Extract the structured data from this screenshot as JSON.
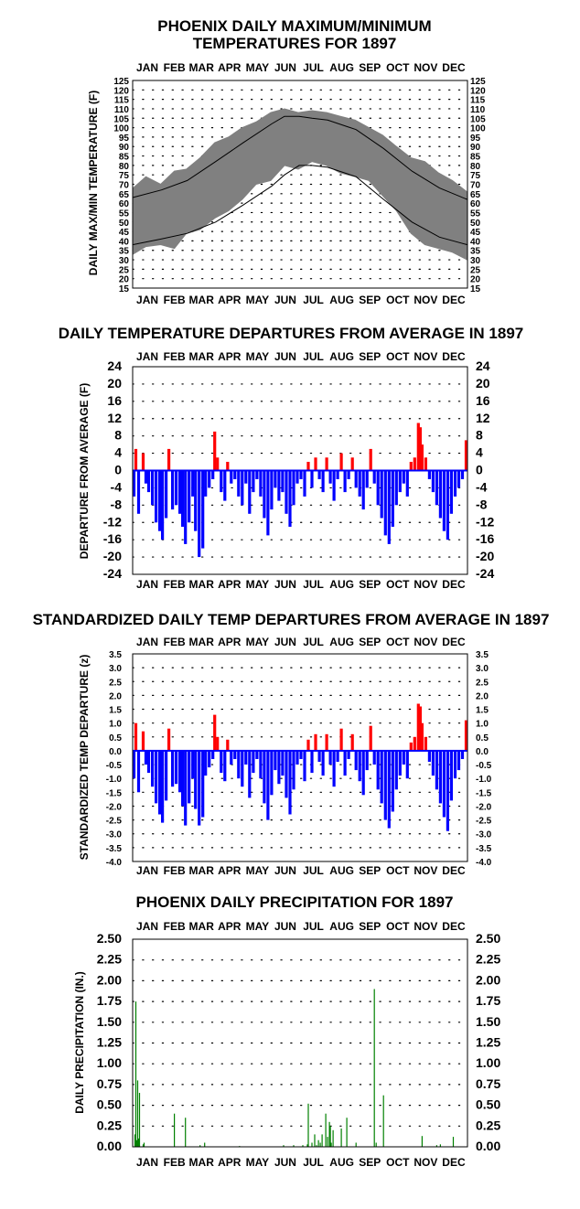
{
  "colors": {
    "background": "#ffffff",
    "frame": "#000000",
    "grid_dots": "#000000",
    "max_min_band": "#808080",
    "normal_lines": "#000000",
    "positive_departure": "#ff0000",
    "negative_departure": "#0000ff",
    "precipitation": "#008000"
  },
  "chart_data": [
    {
      "type": "area",
      "title": "PHOENIX DAILY MAXIMUM/MINIMUM",
      "title_line2": "TEMPERATURES FOR 1897",
      "ylabel": "DAILY MAX/MIN TEMPERATURE (F)",
      "xlabel": "",
      "months": [
        "JAN",
        "FEB",
        "MAR",
        "APR",
        "MAY",
        "JUN",
        "JUL",
        "AUG",
        "SEP",
        "OCT",
        "NOV",
        "DEC"
      ],
      "ylim": [
        15,
        125
      ],
      "yticks": [
        "15",
        "20",
        "25",
        "30",
        "35",
        "40",
        "45",
        "50",
        "55",
        "60",
        "65",
        "70",
        "75",
        "80",
        "85",
        "90",
        "95",
        "100",
        "105",
        "110",
        "115",
        "120",
        "125"
      ],
      "grid": true,
      "series": [
        {
          "kind": "band",
          "x": [
            1,
            15,
            31,
            46,
            59,
            74,
            90,
            105,
            120,
            135,
            151,
            166,
            181,
            196,
            212,
            227,
            243,
            258,
            273,
            288,
            304,
            319,
            334,
            349,
            365
          ],
          "high": [
            68,
            74,
            70,
            77,
            78,
            84,
            92,
            95,
            100,
            103,
            108,
            110,
            108,
            109,
            108,
            106,
            104,
            100,
            96,
            90,
            84,
            82,
            76,
            72,
            66
          ],
          "low": [
            33,
            37,
            38,
            36,
            44,
            46,
            52,
            56,
            62,
            70,
            72,
            80,
            78,
            82,
            80,
            76,
            74,
            72,
            64,
            56,
            44,
            38,
            36,
            34,
            30
          ]
        },
        {
          "kind": "line",
          "x": [
            1,
            32,
            60,
            91,
            121,
            152,
            166,
            182,
            196,
            213,
            244,
            274,
            305,
            335,
            365
          ],
          "y": [
            63,
            67,
            72,
            82,
            92,
            102,
            106,
            106,
            105,
            104,
            99,
            89,
            77,
            68,
            62
          ]
        },
        {
          "kind": "line",
          "x": [
            1,
            32,
            60,
            91,
            121,
            152,
            166,
            182,
            196,
            213,
            244,
            274,
            305,
            335,
            365
          ],
          "y": [
            38,
            41,
            44,
            50,
            59,
            69,
            75,
            80,
            80,
            79,
            74,
            62,
            50,
            42,
            38
          ]
        }
      ]
    },
    {
      "type": "bar",
      "title": "DAILY TEMPERATURE DEPARTURES FROM AVERAGE IN 1897",
      "ylabel": "DEPARTURE FROM AVERAGE (F)",
      "xlabel": "",
      "months": [
        "JAN",
        "FEB",
        "MAR",
        "APR",
        "MAY",
        "JUN",
        "JUL",
        "AUG",
        "SEP",
        "OCT",
        "NOV",
        "DEC"
      ],
      "ylim": [
        -24,
        24
      ],
      "yticks": [
        "24",
        "20",
        "16",
        "12",
        "8",
        "4",
        "0",
        "-4",
        "-8",
        "-12",
        "-16",
        "-20",
        "-24"
      ],
      "grid": true,
      "x": [
        2,
        4,
        7,
        12,
        15,
        18,
        22,
        26,
        30,
        33,
        37,
        40,
        44,
        48,
        52,
        55,
        58,
        62,
        66,
        69,
        73,
        77,
        80,
        84,
        88,
        90,
        93,
        97,
        101,
        104,
        108,
        112,
        116,
        120,
        124,
        128,
        132,
        136,
        140,
        144,
        148,
        152,
        156,
        160,
        164,
        168,
        172,
        176,
        180,
        184,
        188,
        192,
        196,
        200,
        204,
        208,
        212,
        216,
        220,
        224,
        228,
        232,
        236,
        240,
        244,
        248,
        252,
        256,
        260,
        264,
        268,
        272,
        276,
        280,
        284,
        288,
        292,
        296,
        300,
        304,
        308,
        312,
        314,
        316,
        320,
        324,
        328,
        332,
        336,
        340,
        344,
        348,
        352,
        356,
        360,
        364
      ],
      "values": [
        -6,
        5,
        -10,
        4,
        -3,
        -5,
        -8,
        -12,
        -14,
        -16,
        -11,
        5,
        -9,
        -8,
        -10,
        -13,
        -17,
        -12,
        -6,
        -14,
        -20,
        -18,
        -6,
        -4,
        -2,
        9,
        3,
        -5,
        -7,
        2,
        -3,
        -2,
        -6,
        -8,
        -3,
        -10,
        -5,
        -2,
        -6,
        -11,
        -15,
        -9,
        -4,
        -7,
        -5,
        -10,
        -13,
        -8,
        -3,
        -2,
        -6,
        2,
        -4,
        3,
        -2,
        -5,
        3,
        -3,
        -7,
        -2,
        4,
        -5,
        -2,
        3,
        -4,
        -6,
        -9,
        -4,
        5,
        -3,
        -8,
        -11,
        -15,
        -17,
        -13,
        -8,
        -5,
        -3,
        -6,
        2,
        3,
        11,
        10,
        6,
        3,
        -2,
        -5,
        -8,
        -11,
        -14,
        -16,
        -10,
        -6,
        -4,
        -2,
        7
      ]
    },
    {
      "type": "bar",
      "title": "STANDARDIZED DAILY TEMP DEPARTURES FROM AVERAGE IN 1897",
      "ylabel": "STANDARDIZED TEMP DEPARTURE (z)",
      "xlabel": "",
      "months": [
        "JAN",
        "FEB",
        "MAR",
        "APR",
        "MAY",
        "JUN",
        "JUL",
        "AUG",
        "SEP",
        "OCT",
        "NOV",
        "DEC"
      ],
      "ylim": [
        -4.0,
        3.5
      ],
      "yticks": [
        "3.5",
        "3.0",
        "2.5",
        "2.0",
        "1.5",
        "1.0",
        "0.5",
        "0.0",
        "-0.5",
        "-1.0",
        "-1.5",
        "-2.0",
        "-2.5",
        "-3.0",
        "-3.5",
        "-4.0"
      ],
      "grid": true,
      "x": [
        2,
        4,
        7,
        12,
        15,
        18,
        22,
        26,
        30,
        33,
        37,
        40,
        44,
        48,
        52,
        55,
        58,
        62,
        66,
        69,
        73,
        77,
        80,
        84,
        88,
        90,
        93,
        97,
        101,
        104,
        108,
        112,
        116,
        120,
        124,
        128,
        132,
        136,
        140,
        144,
        148,
        152,
        156,
        160,
        164,
        168,
        172,
        176,
        180,
        184,
        188,
        192,
        196,
        200,
        204,
        208,
        212,
        216,
        220,
        224,
        228,
        232,
        236,
        240,
        244,
        248,
        252,
        256,
        260,
        264,
        268,
        272,
        276,
        280,
        284,
        288,
        292,
        296,
        300,
        304,
        308,
        312,
        314,
        316,
        320,
        324,
        328,
        332,
        336,
        340,
        344,
        348,
        352,
        356,
        360,
        364
      ],
      "values": [
        -1.0,
        1.0,
        -1.5,
        0.7,
        -0.5,
        -0.8,
        -1.3,
        -1.9,
        -2.3,
        -2.6,
        -1.8,
        0.8,
        -1.3,
        -1.2,
        -1.5,
        -2.0,
        -2.7,
        -1.9,
        -1.0,
        -2.1,
        -2.7,
        -2.4,
        -0.9,
        -0.6,
        -0.3,
        1.3,
        0.5,
        -0.8,
        -1.1,
        0.4,
        -0.5,
        -0.3,
        -1.0,
        -1.3,
        -0.5,
        -1.7,
        -0.8,
        -0.3,
        -1.0,
        -1.9,
        -2.5,
        -1.6,
        -0.7,
        -1.2,
        -0.9,
        -1.7,
        -2.3,
        -1.4,
        -0.5,
        -0.3,
        -1.1,
        0.4,
        -0.8,
        0.6,
        -0.4,
        -0.9,
        0.6,
        -0.5,
        -1.3,
        -0.4,
        0.8,
        -0.9,
        -0.3,
        0.6,
        -0.7,
        -1.1,
        -1.6,
        -0.7,
        0.9,
        -0.5,
        -1.4,
        -1.9,
        -2.5,
        -2.8,
        -2.2,
        -1.4,
        -0.9,
        -0.5,
        -1.0,
        0.3,
        0.5,
        1.7,
        1.6,
        1.0,
        0.5,
        -0.4,
        -0.9,
        -1.4,
        -1.9,
        -2.4,
        -2.9,
        -1.8,
        -1.0,
        -0.7,
        -0.3,
        1.1
      ]
    },
    {
      "type": "bar",
      "title": "PHOENIX DAILY PRECIPITATION FOR 1897",
      "ylabel": "DAILY PRECIPITATION (IN.)",
      "xlabel": "",
      "months": [
        "JAN",
        "FEB",
        "MAR",
        "APR",
        "MAY",
        "JUN",
        "JUL",
        "AUG",
        "SEP",
        "OCT",
        "NOV",
        "DEC"
      ],
      "ylim": [
        0,
        2.5
      ],
      "yticks": [
        "2.50",
        "2.25",
        "2.00",
        "1.75",
        "1.50",
        "1.25",
        "1.00",
        "0.75",
        "0.50",
        "0.25",
        "0.00"
      ],
      "grid": true,
      "x": [
        3,
        4,
        5,
        6,
        7,
        8,
        12,
        13,
        46,
        58,
        74,
        79,
        117,
        165,
        176,
        186,
        191,
        192,
        196,
        199,
        201,
        203,
        205,
        207,
        211,
        213,
        215,
        216,
        217,
        219,
        228,
        234,
        244,
        264,
        266,
        274,
        316,
        332,
        336,
        350
      ],
      "values": [
        0.15,
        1.75,
        0.08,
        0.8,
        0.1,
        0.65,
        0.03,
        0.05,
        0.4,
        0.35,
        0.02,
        0.05,
        0.01,
        0.02,
        0.02,
        0.02,
        0.03,
        0.52,
        0.05,
        0.15,
        0.02,
        0.08,
        0.05,
        0.15,
        0.4,
        0.12,
        0.3,
        0.25,
        0.05,
        0.2,
        0.22,
        0.35,
        0.05,
        1.9,
        0.05,
        0.62,
        0.13,
        0.02,
        0.03,
        0.12
      ]
    }
  ]
}
